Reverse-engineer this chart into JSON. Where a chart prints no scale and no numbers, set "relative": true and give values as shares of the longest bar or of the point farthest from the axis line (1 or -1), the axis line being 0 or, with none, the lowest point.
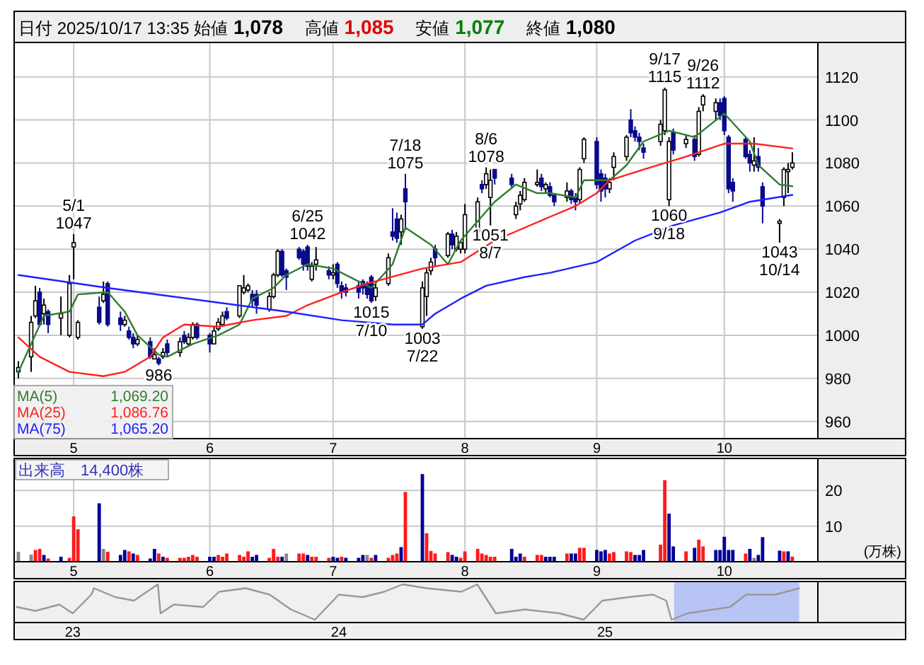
{
  "chart_data": [
    {
      "type": "candlestick",
      "title": "日付 2025/10/17 13:35 始値 1,078 高値 1,085 安値 1,077 終値 1,080",
      "x": [
        "2025-04-18",
        "2025-04-21",
        "2025-04-22",
        "2025-04-23",
        "2025-04-24",
        "2025-04-25",
        "2025-04-28",
        "2025-04-30",
        "2025-05-01",
        "2025-05-02",
        "2025-05-07",
        "2025-05-08",
        "2025-05-09",
        "2025-05-12",
        "2025-05-13",
        "2025-05-14",
        "2025-05-15",
        "2025-05-16",
        "2025-05-19",
        "2025-05-20",
        "2025-05-21",
        "2025-05-22",
        "2025-05-23",
        "2025-05-26",
        "2025-05-27",
        "2025-05-28",
        "2025-05-29",
        "2025-05-30",
        "2025-06-02",
        "2025-06-03",
        "2025-06-04",
        "2025-06-05",
        "2025-06-06",
        "2025-06-09",
        "2025-06-10",
        "2025-06-11",
        "2025-06-12",
        "2025-06-13",
        "2025-06-16",
        "2025-06-17",
        "2025-06-18",
        "2025-06-19",
        "2025-06-20",
        "2025-06-23",
        "2025-06-24",
        "2025-06-25",
        "2025-06-26",
        "2025-06-27",
        "2025-06-30",
        "2025-07-01",
        "2025-07-02",
        "2025-07-03",
        "2025-07-04",
        "2025-07-07",
        "2025-07-08",
        "2025-07-09",
        "2025-07-10",
        "2025-07-11",
        "2025-07-14",
        "2025-07-15",
        "2025-07-16",
        "2025-07-17",
        "2025-07-18",
        "2025-07-22",
        "2025-07-23",
        "2025-07-24",
        "2025-07-25",
        "2025-07-28",
        "2025-07-29",
        "2025-07-30",
        "2025-07-31",
        "2025-08-01",
        "2025-08-04",
        "2025-08-05",
        "2025-08-06",
        "2025-08-07",
        "2025-08-08",
        "2025-08-12",
        "2025-08-13",
        "2025-08-14",
        "2025-08-15",
        "2025-08-18",
        "2025-08-19",
        "2025-08-20",
        "2025-08-21",
        "2025-08-22",
        "2025-08-25",
        "2025-08-26",
        "2025-08-27",
        "2025-08-28",
        "2025-08-29",
        "2025-09-01",
        "2025-09-02",
        "2025-09-03",
        "2025-09-04",
        "2025-09-05",
        "2025-09-08",
        "2025-09-09",
        "2025-09-10",
        "2025-09-11",
        "2025-09-12",
        "2025-09-16",
        "2025-09-17",
        "2025-09-18",
        "2025-09-19",
        "2025-09-22",
        "2025-09-24",
        "2025-09-25",
        "2025-09-26",
        "2025-09-29",
        "2025-09-30",
        "2025-10-01",
        "2025-10-02",
        "2025-10-03",
        "2025-10-06",
        "2025-10-07",
        "2025-10-08",
        "2025-10-09",
        "2025-10-10",
        "2025-10-14",
        "2025-10-15",
        "2025-10-16",
        "2025-10-17"
      ],
      "ohlc": [
        [
          983,
          988,
          980,
          985
        ],
        [
          990,
          1009,
          983,
          1006
        ],
        [
          1009,
          1023,
          1008,
          1016
        ],
        [
          1020,
          1022,
          1004,
          1005
        ],
        [
          1010,
          1017,
          1005,
          1014
        ],
        [
          1011,
          1012,
          1001,
          1005
        ],
        [
          1008,
          1018,
          1000,
          1010
        ],
        [
          1000,
          1028,
          999,
          1024
        ],
        [
          1041,
          1047,
          1026,
          1043
        ],
        [
          999,
          1007,
          998,
          1006
        ],
        [
          1013,
          1018,
          1005,
          1006
        ],
        [
          1016,
          1025,
          1015,
          1019
        ],
        [
          1024,
          1025,
          1004,
          1005
        ],
        [
          1008,
          1011,
          1002,
          1005
        ],
        [
          1005,
          1009,
          1004,
          1007
        ],
        [
          1002,
          1004,
          998,
          999
        ],
        [
          999,
          1001,
          994,
          996
        ],
        [
          996,
          1000,
          995,
          998
        ],
        [
          997,
          999,
          989,
          990
        ],
        [
          989,
          994,
          989,
          991
        ],
        [
          989,
          990,
          986,
          987
        ],
        [
          990,
          994,
          989,
          992
        ],
        [
          996,
          998,
          990,
          992
        ],
        [
          992,
          999,
          990,
          997
        ],
        [
          1000,
          1002,
          996,
          997
        ],
        [
          996,
          1001,
          995,
          999
        ],
        [
          999,
          1006,
          998,
          1005
        ],
        [
          1005,
          1006,
          998,
          999
        ],
        [
          1000,
          1001,
          992,
          996
        ],
        [
          996,
          1004,
          996,
          1002
        ],
        [
          1003,
          1008,
          1002,
          1006
        ],
        [
          1005,
          1011,
          1004,
          1009
        ],
        [
          1011,
          1013,
          1007,
          1008
        ],
        [
          1009,
          1023,
          1008,
          1023
        ],
        [
          1020,
          1028,
          1019,
          1022
        ],
        [
          1021,
          1024,
          1020,
          1023
        ],
        [
          1019,
          1021,
          1013,
          1016
        ],
        [
          1019,
          1021,
          1010,
          1014
        ],
        [
          1012,
          1020,
          1011,
          1018
        ],
        [
          1018,
          1029,
          1017,
          1028
        ],
        [
          1028,
          1040,
          1027,
          1039
        ],
        [
          1039,
          1040,
          1027,
          1028
        ],
        [
          1030,
          1031,
          1021,
          1027
        ],
        [
          1040,
          1041,
          1035,
          1036
        ],
        [
          1039,
          1040,
          1030,
          1033
        ],
        [
          1041,
          1042,
          1030,
          1032
        ],
        [
          1026,
          1034,
          1025,
          1032
        ],
        [
          1033,
          1041,
          1030,
          1035
        ],
        [
          1030,
          1032,
          1026,
          1028
        ],
        [
          1028,
          1033,
          1026,
          1029
        ],
        [
          1033,
          1034,
          1022,
          1024
        ],
        [
          1023,
          1025,
          1017,
          1020
        ],
        [
          1022,
          1024,
          1018,
          1020
        ],
        [
          1023,
          1025,
          1017,
          1020
        ],
        [
          1025,
          1026,
          1019,
          1022
        ],
        [
          1024,
          1025,
          1017,
          1019
        ],
        [
          1027,
          1028,
          1015,
          1016
        ],
        [
          1018,
          1024,
          1016,
          1022
        ],
        [
          1024,
          1038,
          1023,
          1036
        ],
        [
          1048,
          1059,
          1044,
          1046
        ],
        [
          1054,
          1057,
          1043,
          1045
        ],
        [
          1048,
          1056,
          1042,
          1054
        ],
        [
          1068,
          1075,
          1049,
          1062
        ],
        [
          1004,
          1025,
          1003,
          1022
        ],
        [
          1018,
          1031,
          1009,
          1029
        ],
        [
          1030,
          1036,
          1028,
          1034
        ],
        [
          1040,
          1042,
          1032,
          1036
        ],
        [
          1037,
          1048,
          1036,
          1047
        ],
        [
          1047,
          1049,
          1040,
          1042
        ],
        [
          1040,
          1048,
          1039,
          1046
        ],
        [
          1040,
          1044,
          1038,
          1043
        ],
        [
          1040,
          1061,
          1038,
          1056
        ],
        [
          1048,
          1064,
          1045,
          1062
        ],
        [
          1070,
          1072,
          1066,
          1068
        ],
        [
          1070,
          1078,
          1068,
          1075
        ],
        [
          1064,
          1077,
          1051,
          1072
        ],
        [
          1077,
          1077,
          1070,
          1073
        ],
        [
          1073,
          1075,
          1068,
          1070
        ],
        [
          1056,
          1062,
          1054,
          1060
        ],
        [
          1061,
          1067,
          1058,
          1065
        ],
        [
          1063,
          1073,
          1062,
          1071
        ],
        [
          1070,
          1077,
          1069,
          1071
        ],
        [
          1073,
          1075,
          1067,
          1069
        ],
        [
          1068,
          1071,
          1066,
          1070
        ],
        [
          1069,
          1071,
          1064,
          1065
        ],
        [
          1065,
          1066,
          1060,
          1062
        ],
        [
          1064,
          1071,
          1062,
          1067
        ],
        [
          1067,
          1068,
          1061,
          1063
        ],
        [
          1064,
          1066,
          1058,
          1062
        ],
        [
          1063,
          1078,
          1061,
          1077
        ],
        [
          1082,
          1092,
          1080,
          1091
        ],
        [
          1090,
          1092,
          1068,
          1070
        ],
        [
          1075,
          1077,
          1062,
          1067
        ],
        [
          1073,
          1075,
          1064,
          1068
        ],
        [
          1068,
          1073,
          1066,
          1071
        ],
        [
          1078,
          1085,
          1072,
          1083
        ],
        [
          1083,
          1093,
          1081,
          1092
        ],
        [
          1100,
          1105,
          1092,
          1094
        ],
        [
          1095,
          1097,
          1090,
          1092
        ],
        [
          1092,
          1094,
          1086,
          1090
        ],
        [
          1087,
          1089,
          1082,
          1085
        ],
        [
          1090,
          1100,
          1088,
          1098
        ],
        [
          1095,
          1115,
          1093,
          1114
        ],
        [
          1063,
          1092,
          1060,
          1090
        ],
        [
          1094,
          1096,
          1084,
          1086
        ],
        [
          1089,
          1093,
          1087,
          1091
        ],
        [
          1091,
          1093,
          1081,
          1083
        ],
        [
          1084,
          1106,
          1083,
          1104
        ],
        [
          1107,
          1112,
          1104,
          1111
        ],
        [
          1104,
          1110,
          1100,
          1108
        ],
        [
          1108,
          1110,
          1100,
          1102
        ],
        [
          1110,
          1111,
          1093,
          1095
        ],
        [
          1092,
          1093,
          1066,
          1068
        ],
        [
          1071,
          1073,
          1062,
          1067
        ],
        [
          1091,
          1092,
          1082,
          1083
        ],
        [
          1084,
          1086,
          1076,
          1080
        ],
        [
          1079,
          1092,
          1076,
          1081
        ],
        [
          1083,
          1087,
          1076,
          1078
        ],
        [
          1069,
          1071,
          1052,
          1060
        ],
        [
          1052,
          1054,
          1043,
          1053
        ],
        [
          1064,
          1078,
          1060,
          1077
        ],
        [
          1076,
          1080,
          1066,
          1077
        ],
        [
          1078,
          1085,
          1077,
          1080
        ]
      ],
      "series": [
        {
          "name": "MA(5)",
          "type": "line",
          "color": "#2e7d2e",
          "x": [
            "2025-04-18",
            "2025-04-24",
            "2025-04-30",
            "2025-05-02",
            "2025-05-09",
            "2025-05-13",
            "2025-05-16",
            "2025-05-21",
            "2025-05-23",
            "2025-05-29",
            "2025-06-04",
            "2025-06-09",
            "2025-06-12",
            "2025-06-17",
            "2025-06-20",
            "2025-06-25",
            "2025-07-01",
            "2025-07-08",
            "2025-07-10",
            "2025-07-15",
            "2025-07-18",
            "2025-07-24",
            "2025-07-28",
            "2025-07-31",
            "2025-08-08",
            "2025-08-13",
            "2025-08-18",
            "2025-08-21",
            "2025-08-27",
            "2025-08-29",
            "2025-09-04",
            "2025-09-08",
            "2025-09-12",
            "2025-09-18",
            "2025-09-24",
            "2025-10-01",
            "2025-10-07",
            "2025-10-09",
            "2025-10-14",
            "2025-10-17"
          ],
          "values": [
            983,
            1009,
            1011,
            1019,
            1020,
            1011,
            1000,
            991,
            990,
            996,
            1000,
            1005,
            1017,
            1022,
            1028,
            1033,
            1031,
            1024,
            1022,
            1033,
            1050,
            1042,
            1033,
            1044,
            1062,
            1070,
            1066,
            1066,
            1064,
            1072,
            1072,
            1079,
            1090,
            1095,
            1092,
            1103,
            1090,
            1079,
            1070,
            1069.2
          ]
        },
        {
          "name": "MA(25)",
          "type": "line",
          "color": "#ff2020",
          "x": [
            "2025-04-18",
            "2025-04-23",
            "2025-04-30",
            "2025-05-08",
            "2025-05-13",
            "2025-05-19",
            "2025-05-22",
            "2025-05-27",
            "2025-06-04",
            "2025-06-12",
            "2025-06-20",
            "2025-06-25",
            "2025-07-03",
            "2025-07-09",
            "2025-07-22",
            "2025-07-31",
            "2025-08-08",
            "2025-08-21",
            "2025-08-27",
            "2025-09-01",
            "2025-09-04",
            "2025-09-12",
            "2025-09-22",
            "2025-10-01",
            "2025-10-08",
            "2025-10-17"
          ],
          "values": [
            999,
            990,
            983,
            981,
            983,
            990,
            999,
            1005,
            1004,
            1007,
            1009,
            1014,
            1020,
            1024,
            1031,
            1034,
            1044,
            1055,
            1060,
            1066,
            1072,
            1077,
            1083,
            1089,
            1089,
            1086.76
          ]
        },
        {
          "name": "MA(75)",
          "type": "line",
          "color": "#2020ff",
          "x": [
            "2025-04-18",
            "2025-05-09",
            "2025-06-20",
            "2025-07-03",
            "2025-07-15",
            "2025-07-22",
            "2025-07-25",
            "2025-07-31",
            "2025-08-06",
            "2025-08-15",
            "2025-08-21",
            "2025-09-01",
            "2025-09-10",
            "2025-09-19",
            "2025-09-30",
            "2025-10-07",
            "2025-10-17"
          ],
          "values": [
            1028,
            1022,
            1011,
            1007,
            1005,
            1005,
            1010,
            1017,
            1023,
            1027,
            1029,
            1034,
            1044,
            1051,
            1057,
            1062,
            1065.2
          ]
        }
      ],
      "xlim": [
        "2025-04-17",
        "2025-10-23"
      ],
      "xticks": [
        {
          "value": "2025-05-01",
          "label": "5"
        },
        {
          "value": "2025-06-02",
          "label": "6"
        },
        {
          "value": "2025-07-01",
          "label": "7"
        },
        {
          "value": "2025-08-01",
          "label": "8"
        },
        {
          "value": "2025-09-01",
          "label": "9"
        },
        {
          "value": "2025-10-01",
          "label": "10"
        }
      ],
      "ylim": [
        952,
        1136
      ],
      "yticks": [
        960,
        980,
        1000,
        1020,
        1040,
        1060,
        1080,
        1100,
        1120
      ],
      "grid": true,
      "legend": "bottom left",
      "annotations": [
        "1,069.20",
        "1,086.76",
        "1,065.20",
        {
          "text": "5/1\n1047",
          "x": "2025-05-01",
          "y": 1047
        },
        {
          "text": "6/25\n1042",
          "x": "2025-06-25",
          "y": 1042
        },
        {
          "text": "7/18\n1075",
          "x": "2025-07-18",
          "y": 1075
        },
        {
          "text": "8/6\n1078",
          "x": "2025-08-06",
          "y": 1078
        },
        {
          "text": "9/17\n1115",
          "x": "2025-09-17",
          "y": 1115
        },
        {
          "text": "9/26\n1112",
          "x": "2025-09-26",
          "y": 1112
        },
        {
          "text": "986",
          "x": "2025-05-21",
          "y": 986
        },
        {
          "text": "1015\n7/10",
          "x": "2025-07-10",
          "y": 1015
        },
        {
          "text": "1003\n7/22",
          "x": "2025-07-22",
          "y": 1003
        },
        {
          "text": "1051\n8/7",
          "x": "2025-08-07",
          "y": 1051
        },
        {
          "text": "1060\n9/18",
          "x": "2025-09-18",
          "y": 1060
        },
        {
          "text": "1043\n10/14",
          "x": "2025-10-14",
          "y": 1043
        }
      ]
    },
    {
      "type": "bar",
      "title": "出来高　14,400株",
      "ylabel": "(万株)",
      "x": [
        "2025-04-18",
        "2025-04-21",
        "2025-04-22",
        "2025-04-23",
        "2025-04-24",
        "2025-04-25",
        "2025-04-28",
        "2025-04-30",
        "2025-05-01",
        "2025-05-02",
        "2025-05-07",
        "2025-05-08",
        "2025-05-09",
        "2025-05-12",
        "2025-05-13",
        "2025-05-14",
        "2025-05-15",
        "2025-05-16",
        "2025-05-19",
        "2025-05-20",
        "2025-05-21",
        "2025-05-22",
        "2025-05-23",
        "2025-05-26",
        "2025-05-27",
        "2025-05-28",
        "2025-05-29",
        "2025-05-30",
        "2025-06-02",
        "2025-06-03",
        "2025-06-04",
        "2025-06-05",
        "2025-06-06",
        "2025-06-09",
        "2025-06-10",
        "2025-06-11",
        "2025-06-12",
        "2025-06-13",
        "2025-06-16",
        "2025-06-17",
        "2025-06-18",
        "2025-06-19",
        "2025-06-20",
        "2025-06-23",
        "2025-06-24",
        "2025-06-25",
        "2025-06-26",
        "2025-06-27",
        "2025-06-30",
        "2025-07-01",
        "2025-07-02",
        "2025-07-03",
        "2025-07-04",
        "2025-07-07",
        "2025-07-08",
        "2025-07-09",
        "2025-07-10",
        "2025-07-11",
        "2025-07-14",
        "2025-07-15",
        "2025-07-16",
        "2025-07-17",
        "2025-07-18",
        "2025-07-22",
        "2025-07-23",
        "2025-07-24",
        "2025-07-25",
        "2025-07-28",
        "2025-07-29",
        "2025-07-30",
        "2025-07-31",
        "2025-08-01",
        "2025-08-04",
        "2025-08-05",
        "2025-08-06",
        "2025-08-07",
        "2025-08-08",
        "2025-08-12",
        "2025-08-13",
        "2025-08-14",
        "2025-08-15",
        "2025-08-18",
        "2025-08-19",
        "2025-08-20",
        "2025-08-21",
        "2025-08-22",
        "2025-08-25",
        "2025-08-26",
        "2025-08-27",
        "2025-08-28",
        "2025-08-29",
        "2025-09-01",
        "2025-09-02",
        "2025-09-03",
        "2025-09-04",
        "2025-09-05",
        "2025-09-08",
        "2025-09-09",
        "2025-09-10",
        "2025-09-11",
        "2025-09-12",
        "2025-09-16",
        "2025-09-17",
        "2025-09-18",
        "2025-09-19",
        "2025-09-22",
        "2025-09-24",
        "2025-09-25",
        "2025-09-26",
        "2025-09-29",
        "2025-09-30",
        "2025-10-01",
        "2025-10-02",
        "2025-10-03",
        "2025-10-06",
        "2025-10-07",
        "2025-10-08",
        "2025-10-09",
        "2025-10-10",
        "2025-10-14",
        "2025-10-15",
        "2025-10-16",
        "2025-10-17"
      ],
      "values": [
        2.8,
        2.0,
        3.3,
        3.6,
        1.9,
        0.9,
        1.4,
        1.1,
        12.7,
        9.1,
        16.4,
        3.6,
        2.8,
        1.9,
        3.3,
        2.9,
        2.3,
        1.9,
        0.9,
        3.6,
        2.3,
        1.4,
        1.1,
        1.1,
        1.1,
        1.4,
        1.9,
        1.4,
        1.4,
        1.4,
        1.9,
        1.4,
        2.3,
        1.9,
        1.4,
        2.9,
        1.4,
        1.9,
        1.1,
        3.6,
        1.4,
        1.4,
        2.3,
        2.3,
        2.3,
        1.9,
        1.4,
        1.4,
        1.1,
        1.4,
        1.1,
        1.4,
        1.1,
        1.1,
        1.9,
        1.9,
        1.1,
        1.9,
        1.1,
        1.9,
        2.3,
        4.1,
        19.6,
        24.6,
        8.0,
        3.0,
        2.3,
        2.7,
        1.9,
        1.4,
        1.1,
        2.9,
        3.6,
        2.3,
        1.9,
        1.4,
        1.4,
        3.6,
        1.4,
        2.3,
        1.4,
        1.9,
        1.9,
        1.4,
        1.4,
        1.4,
        2.3,
        2.3,
        2.3,
        3.9,
        3.9,
        3.3,
        2.9,
        3.3,
        2.3,
        2.7,
        2.9,
        2.7,
        1.9,
        1.9,
        3.3,
        4.8,
        22.9,
        13.5,
        4.3,
        2.9,
        3.9,
        6.2,
        4.3,
        3.3,
        3.3,
        7.0,
        3.3,
        3.3,
        2.3,
        3.6,
        1.1,
        1.9,
        6.9,
        3.1,
        2.9,
        2.9,
        1.44
      ],
      "colors": [
        "#888888",
        "#888888",
        "#ff1a1a",
        "#ff1a1a",
        "#000099",
        "#ff1a1a",
        "#000099",
        "#ff1a1a",
        "#ff1a1a",
        "#ff1a1a",
        "#000099",
        "#888888",
        "#ff1a1a",
        "#000099",
        "#000099",
        "#ff1a1a",
        "#000099",
        "#ff1a1a",
        "#000099",
        "#000099",
        "#ff1a1a",
        "#000099",
        "#ff1a1a",
        "#ff1a1a",
        "#ff1a1a",
        "#ff1a1a",
        "#ff1a1a",
        "#ff1a1a",
        "#000099",
        "#000099",
        "#ff1a1a",
        "#ff1a1a",
        "#ff1a1a",
        "#ff1a1a",
        "#ff1a1a",
        "#ff1a1a",
        "#000099",
        "#000099",
        "#ff1a1a",
        "#ff1a1a",
        "#ff1a1a",
        "#000099",
        "#888888",
        "#ff1a1a",
        "#ff1a1a",
        "#000099",
        "#ff1a1a",
        "#ff1a1a",
        "#ff1a1a",
        "#000099",
        "#000099",
        "#ff1a1a",
        "#000099",
        "#000099",
        "#000099",
        "#888888",
        "#ff1a1a",
        "#000099",
        "#ff1a1a",
        "#ff1a1a",
        "#ff1a1a",
        "#000099",
        "#ff1a1a",
        "#000099",
        "#ff1a1a",
        "#ff1a1a",
        "#ff1a1a",
        "#ff1a1a",
        "#000099",
        "#000099",
        "#ff1a1a",
        "#ff1a1a",
        "#ff1a1a",
        "#ff1a1a",
        "#ff1a1a",
        "#ff1a1a",
        "#ff1a1a",
        "#000099",
        "#000099",
        "#000099",
        "#ff1a1a",
        "#ff1a1a",
        "#ff1a1a",
        "#000099",
        "#000099",
        "#000099",
        "#ff1a1a",
        "#000099",
        "#000099",
        "#ff1a1a",
        "#ff1a1a",
        "#000099",
        "#000099",
        "#000099",
        "#ff1a1a",
        "#ff1a1a",
        "#ff1a1a",
        "#ff1a1a",
        "#000099",
        "#000099",
        "#000099",
        "#ff1a1a",
        "#ff1a1a",
        "#000099",
        "#000099",
        "#ff1a1a",
        "#000099",
        "#ff1a1a",
        "#ff1a1a",
        "#000099",
        "#000099",
        "#000099",
        "#000099",
        "#000099",
        "#ff1a1a",
        "#000099",
        "#888888",
        "#000099",
        "#000099",
        "#000099",
        "#ff1a1a",
        "#000099",
        "#ff1a1a"
      ],
      "xlim": [
        "2025-04-17",
        "2025-10-23"
      ],
      "xticks": [
        {
          "value": "2025-05-01",
          "label": "5"
        },
        {
          "value": "2025-06-02",
          "label": "6"
        },
        {
          "value": "2025-07-01",
          "label": "7"
        },
        {
          "value": "2025-08-01",
          "label": "8"
        },
        {
          "value": "2025-09-01",
          "label": "9"
        },
        {
          "value": "2025-10-01",
          "label": "10"
        }
      ],
      "ylim": [
        0,
        29
      ],
      "yticks": [
        10,
        20
      ],
      "grid": true
    },
    {
      "type": "line",
      "relative": true,
      "color": "#999999",
      "x": [
        2022.79,
        2022.86,
        2022.95,
        2023.0,
        2023.07,
        2023.08,
        2023.16,
        2023.23,
        2023.32,
        2023.33,
        2023.38,
        2023.49,
        2023.55,
        2023.65,
        2023.74,
        2023.82,
        2023.91,
        2024.0,
        2024.09,
        2024.17,
        2024.24,
        2024.33,
        2024.46,
        2024.52,
        2024.59,
        2024.7,
        2024.83,
        2024.92,
        2024.99,
        2025.09,
        2025.18,
        2025.23,
        2025.25,
        2025.31,
        2025.47,
        2025.53,
        2025.64,
        2025.73
      ],
      "values": [
        0.36,
        0.25,
        0.43,
        0.18,
        0.71,
        0.89,
        0.64,
        0.54,
        1.0,
        0.18,
        0.43,
        0.36,
        0.79,
        0.89,
        0.71,
        0.29,
        0,
        0.71,
        0.64,
        0.79,
        1.0,
        0.89,
        0.79,
        1.0,
        0.18,
        0.29,
        0.18,
        0,
        0.54,
        0.64,
        0.71,
        0.54,
        0,
        0.18,
        0.36,
        0.71,
        0.71,
        0.89
      ],
      "xlim": [
        2022.78,
        2025.8
      ],
      "xticks": [
        {
          "value": 2023,
          "label": "23"
        },
        {
          "value": 2024,
          "label": "24"
        },
        {
          "value": 2025,
          "label": "25"
        }
      ],
      "bands": [
        {
          "axis": "x",
          "from": 2025.26,
          "to": 2025.73,
          "color": "#b8c4f4"
        }
      ],
      "tick_labels": "x"
    }
  ]
}
